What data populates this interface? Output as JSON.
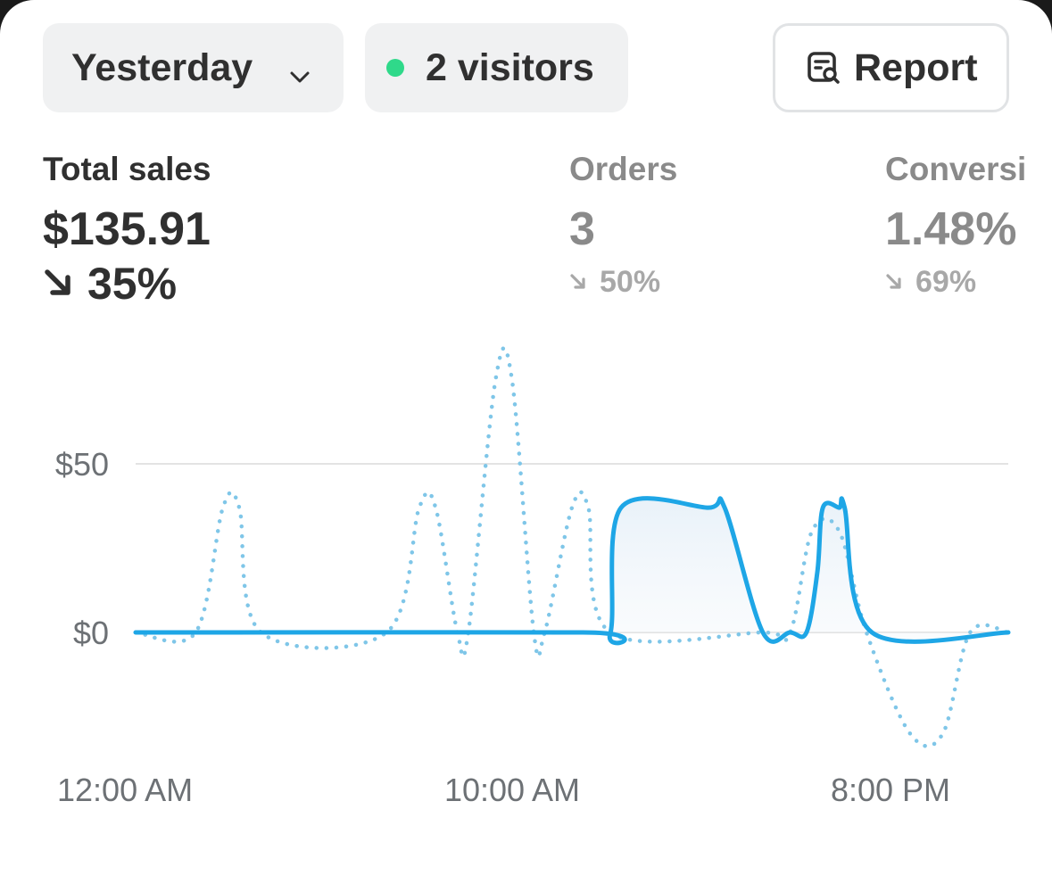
{
  "toolbar": {
    "date_range": "Yesterday",
    "visitors": "2 visitors",
    "report": "Report",
    "live_dot_color": "#2fd98a"
  },
  "metrics": [
    {
      "label": "Total sales",
      "value": "$135.91",
      "change": "35%",
      "direction": "down",
      "selected": true
    },
    {
      "label": "Orders",
      "value": "3",
      "change": "50%",
      "direction": "down",
      "selected": false
    },
    {
      "label": "Conversi",
      "value": "1.48%",
      "change": "69%",
      "direction": "down",
      "selected": false
    }
  ],
  "chart_data": {
    "type": "line",
    "y_ticks": [
      "$50",
      "$0"
    ],
    "x_ticks": [
      "12:00 AM",
      "10:00 AM",
      "8:00 PM"
    ],
    "ylim": [
      -30,
      75
    ],
    "grid": true,
    "series": [
      {
        "style": "solid",
        "color": "#1ea6e6",
        "points": [
          [
            0,
            0
          ],
          [
            8.2,
            0
          ],
          [
            8.7,
            -0.5
          ],
          [
            8.9,
            37
          ],
          [
            10.5,
            37
          ],
          [
            10.8,
            37
          ],
          [
            11.5,
            0
          ],
          [
            12,
            0
          ],
          [
            12.3,
            0
          ],
          [
            12.5,
            18
          ],
          [
            12.6,
            37
          ],
          [
            12.9,
            37
          ],
          [
            13.0,
            37
          ],
          [
            13.5,
            0
          ],
          [
            16,
            0
          ]
        ]
      },
      {
        "style": "dotted",
        "color": "#7fc6e8",
        "points": [
          [
            0,
            0
          ],
          [
            1.1,
            0
          ],
          [
            1.6,
            37
          ],
          [
            1.9,
            37
          ],
          [
            2.3,
            0
          ],
          [
            4.6,
            0
          ],
          [
            5.2,
            37
          ],
          [
            5.5,
            37
          ],
          [
            5.9,
            0
          ],
          [
            6.1,
            0
          ],
          [
            6.6,
            75
          ],
          [
            6.9,
            75
          ],
          [
            7.3,
            0
          ],
          [
            7.5,
            0
          ],
          [
            8.0,
            37
          ],
          [
            8.3,
            37
          ],
          [
            8.7,
            0
          ],
          [
            11.5,
            0
          ],
          [
            12.0,
            0
          ],
          [
            12.4,
            30
          ],
          [
            12.9,
            30
          ],
          [
            13.4,
            0
          ],
          [
            14.2,
            -30
          ],
          [
            14.8,
            -30
          ],
          [
            15.3,
            0
          ],
          [
            16,
            0
          ]
        ]
      }
    ]
  }
}
